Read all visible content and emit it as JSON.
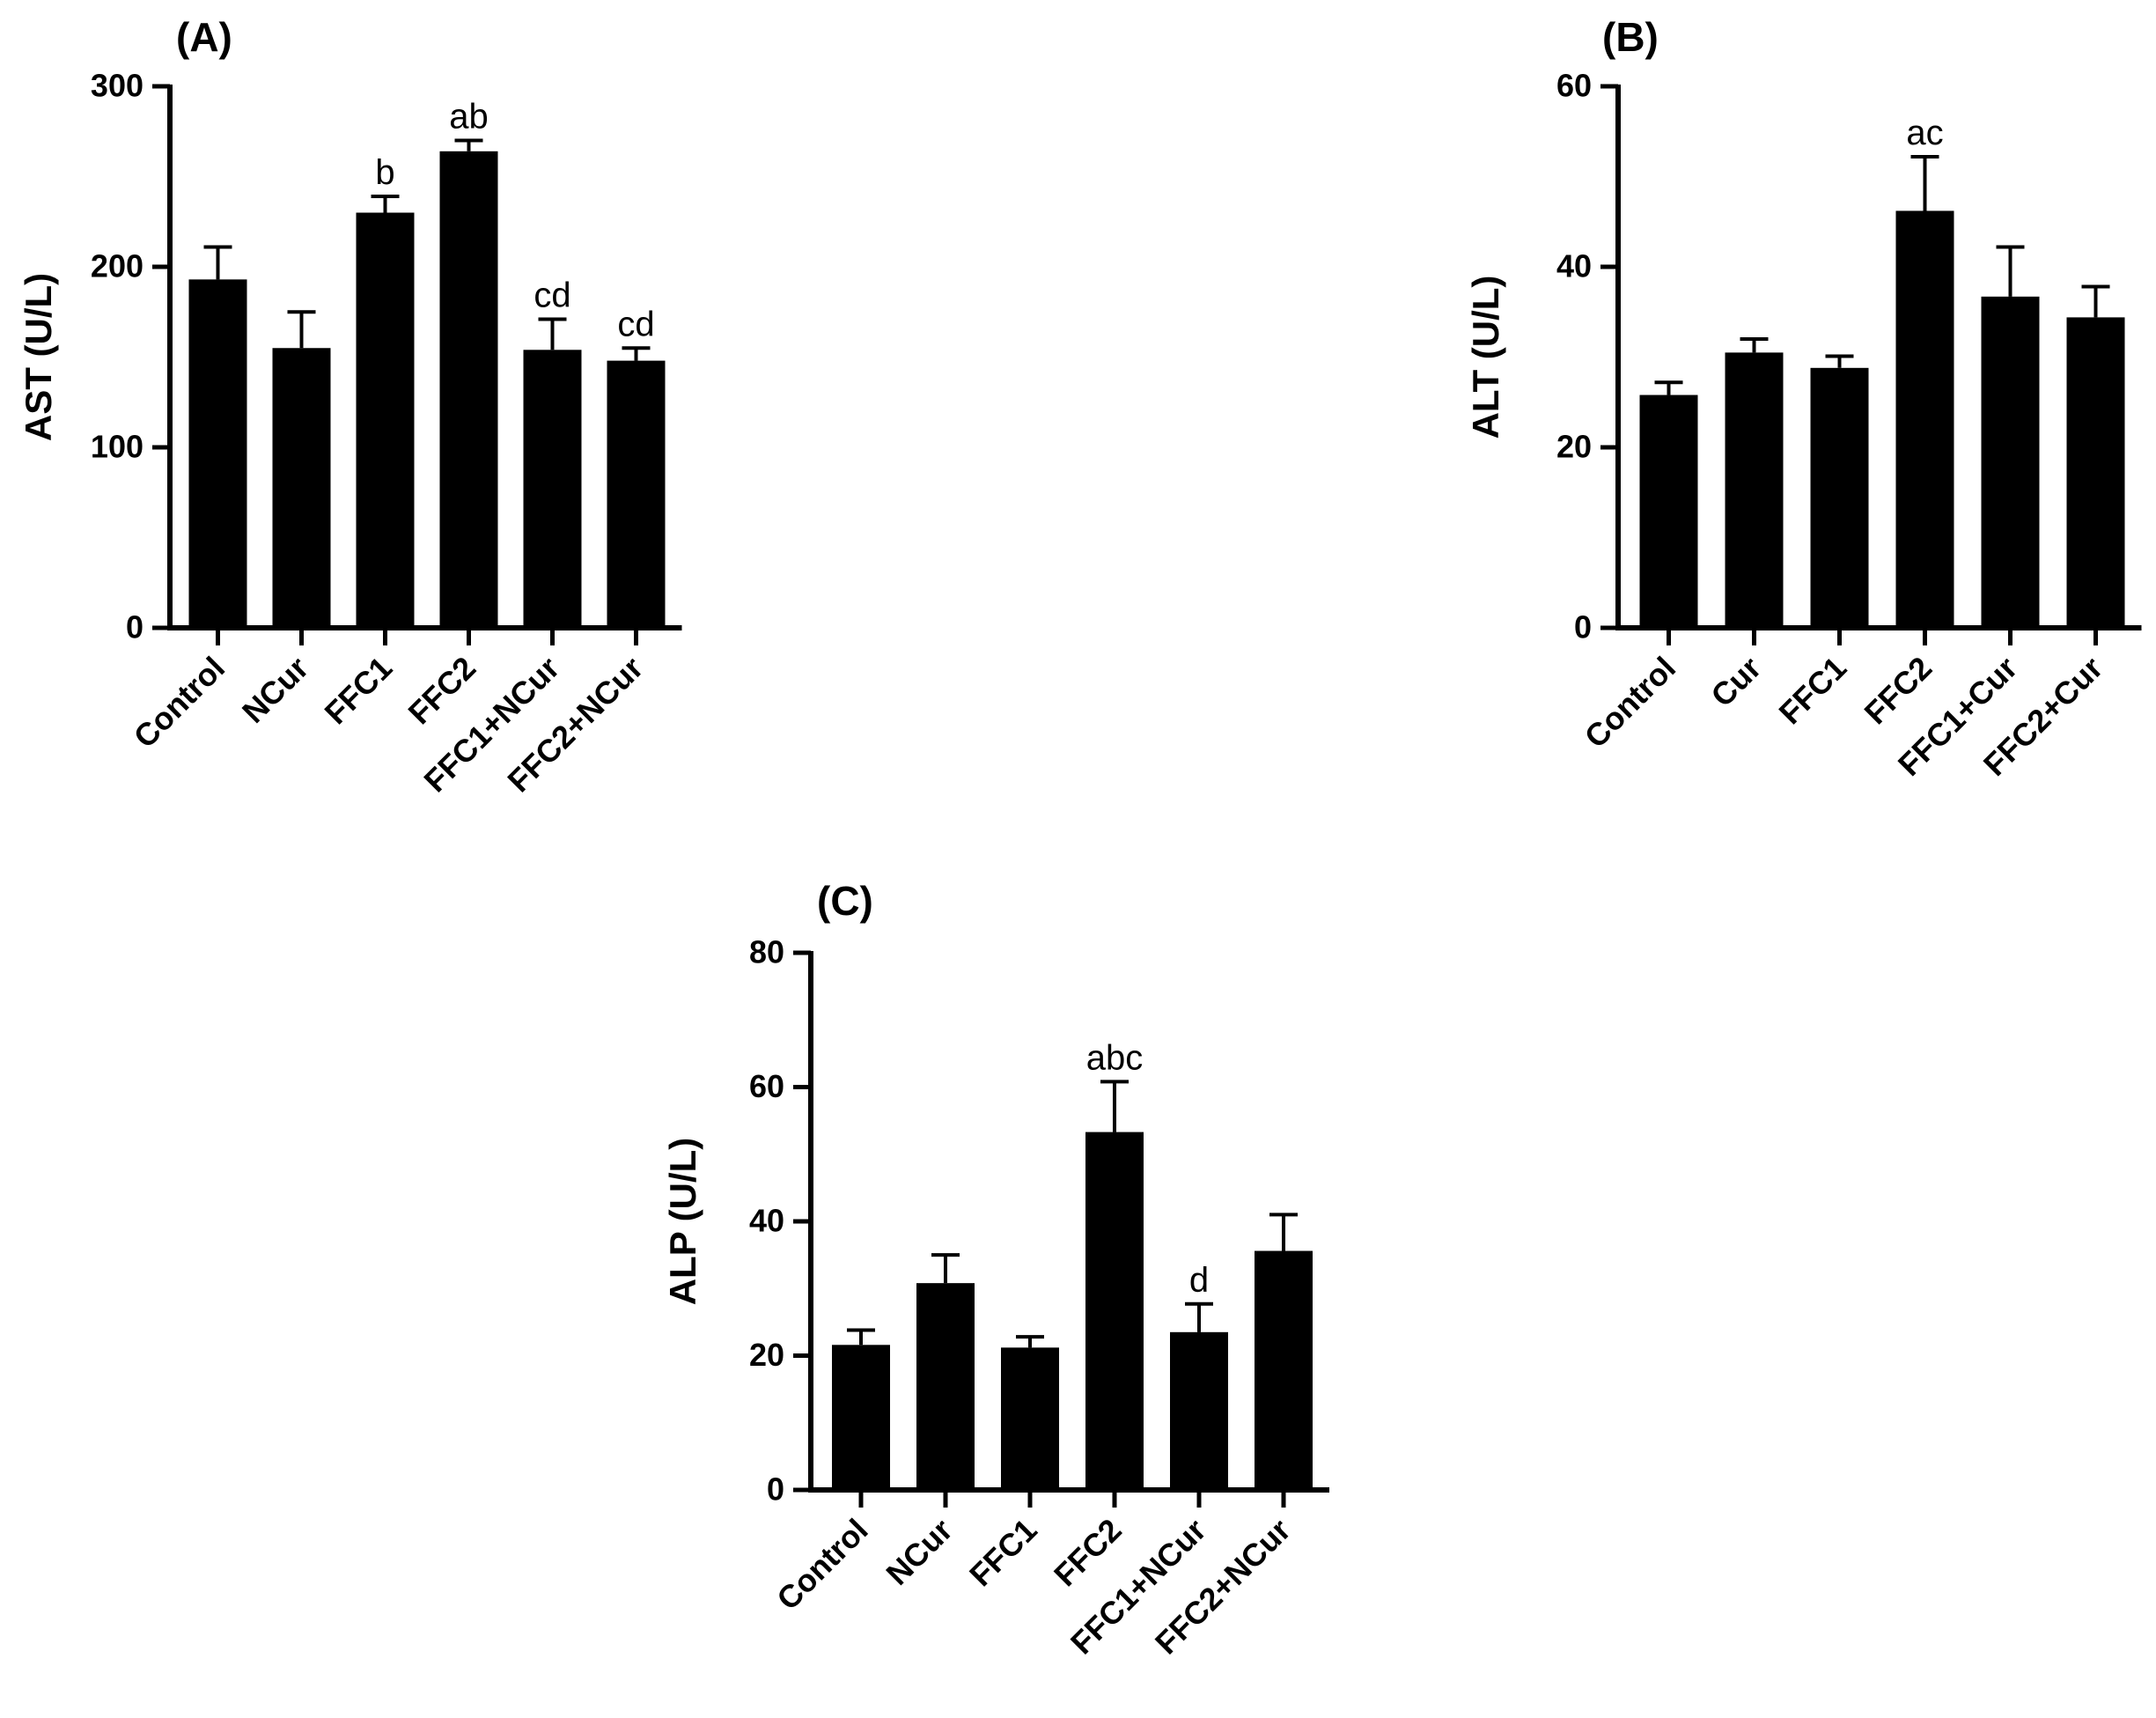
{
  "chart_data": [
    {
      "type": "bar",
      "panel_label": "(A)",
      "ylabel": "AST (U/L)",
      "ylim": [
        0,
        300
      ],
      "yticks": [
        0,
        100,
        200,
        300
      ],
      "categories": [
        "Control",
        "NCur",
        "FFC1",
        "FFC2",
        "FFC1+NCur",
        "FFC2+NCur"
      ],
      "values": [
        193,
        155,
        230,
        264,
        154,
        148
      ],
      "errors": [
        18,
        20,
        9,
        6,
        17,
        7
      ],
      "annotations": [
        "",
        "",
        "b",
        "ab",
        "cd",
        "cd"
      ],
      "bar_color": "#000000"
    },
    {
      "type": "bar",
      "panel_label": "(B)",
      "ylabel": "ALT (U/L)",
      "ylim": [
        0,
        60
      ],
      "yticks": [
        0,
        20,
        40,
        60
      ],
      "categories": [
        "Control",
        "Cur",
        "FFC1",
        "FFC2",
        "FFC1+Cur",
        "FFC2+Cur"
      ],
      "values": [
        25.8,
        30.5,
        28.8,
        46.2,
        36.7,
        34.4
      ],
      "errors": [
        1.4,
        1.5,
        1.3,
        6.0,
        5.5,
        3.4
      ],
      "annotations": [
        "",
        "",
        "",
        "ac",
        "",
        ""
      ],
      "bar_color": "#000000"
    },
    {
      "type": "bar",
      "panel_label": "(C)",
      "ylabel": "ALP (U/L)",
      "ylim": [
        0,
        80
      ],
      "yticks": [
        0,
        20,
        40,
        60,
        80
      ],
      "categories": [
        "Control",
        "NCur",
        "FFC1",
        "FFC2",
        "FFC1+NCur",
        "FFC2+NCur"
      ],
      "values": [
        21.6,
        30.8,
        21.2,
        53.3,
        23.5,
        35.6
      ],
      "errors": [
        2.2,
        4.2,
        1.6,
        7.5,
        4.2,
        5.4
      ],
      "annotations": [
        "",
        "",
        "",
        "abc",
        "d",
        ""
      ],
      "bar_color": "#000000"
    }
  ]
}
